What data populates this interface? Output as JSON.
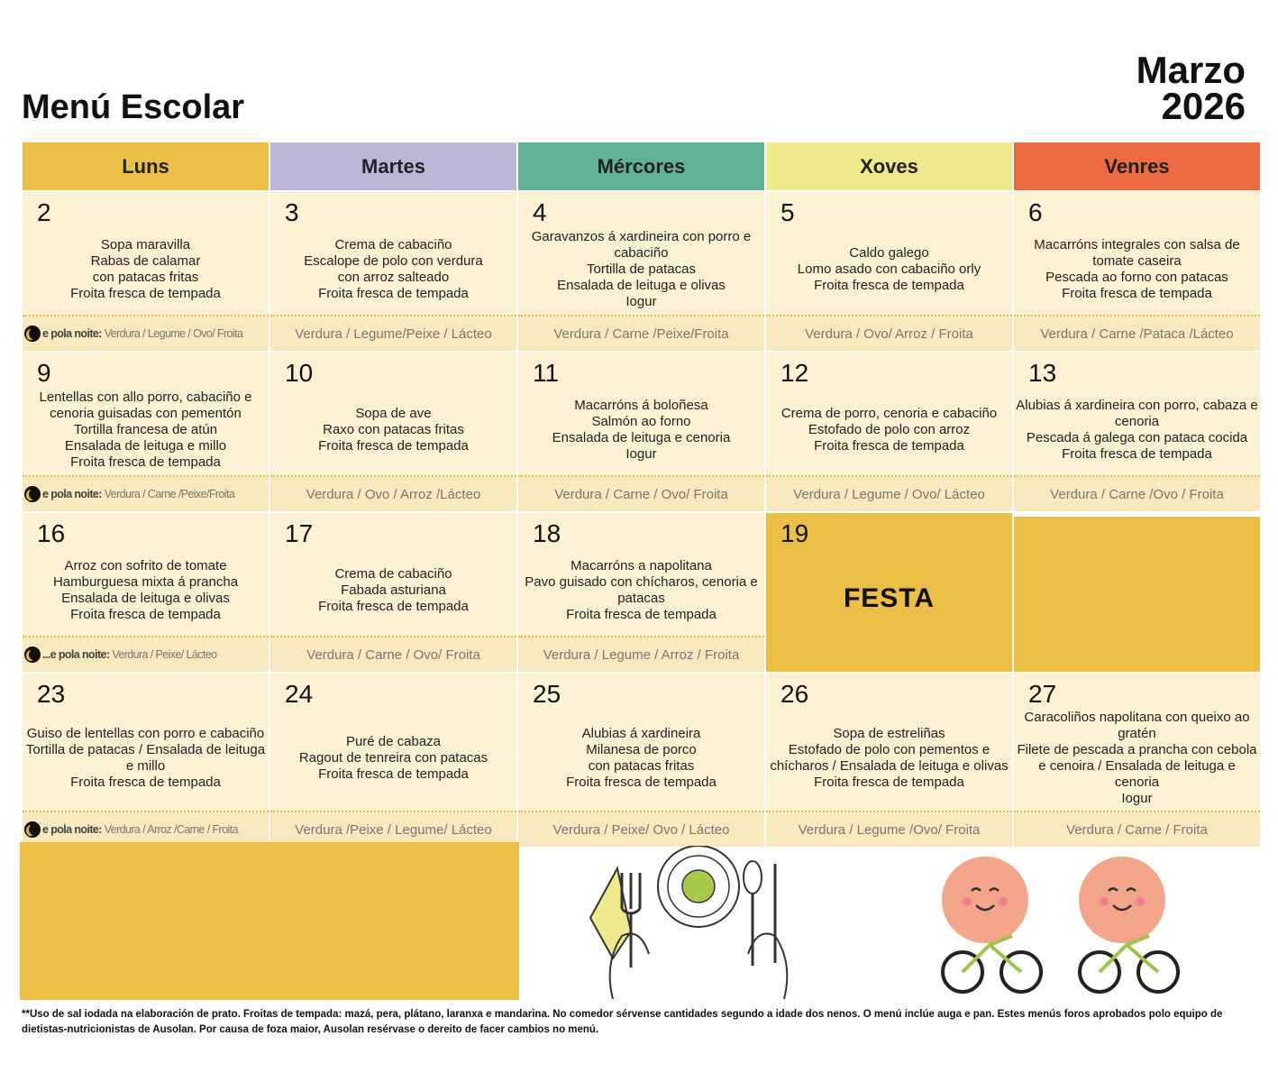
{
  "header": {
    "title": "Menú Escolar",
    "month": "Marzo",
    "year": "2026"
  },
  "days_of_week": [
    {
      "label": "Luns",
      "color": "#EBBF45"
    },
    {
      "label": "Martes",
      "color": "#BDB5DA"
    },
    {
      "label": "Mércores",
      "color": "#5FB298"
    },
    {
      "label": "Xoves",
      "color": "#EEE98A"
    },
    {
      "label": "Venres",
      "color": "#EC6B40"
    }
  ],
  "night_prefix": "e pola noite:",
  "night_prefix_short": "...e pola noite:",
  "weeks": [
    [
      {
        "num": "2",
        "dishes": [
          "Sopa maravilla",
          "Rabas de calamar",
          "con patacas fritas",
          "Froita fresca de tempada"
        ],
        "night": "Verdura / Legume / Ovo/ Froita"
      },
      {
        "num": "3",
        "dishes": [
          "Crema de cabaciño",
          "Escalope de polo con verdura",
          "con arroz salteado",
          "Froita fresca de tempada"
        ],
        "night": "Verdura / Legume/Peixe / Lácteo"
      },
      {
        "num": "4",
        "dishes": [
          "Garavanzos á xardineira con porro e cabaciño",
          "Tortilla de patacas",
          "Ensalada de leituga e olivas",
          "Iogur"
        ],
        "night": "Verdura / Carne /Peixe/Froita"
      },
      {
        "num": "5",
        "dishes": [
          "Caldo galego",
          "Lomo asado con cabaciño orly",
          "Froita fresca de tempada"
        ],
        "night": "Verdura / Ovo/ Arroz / Froita"
      },
      {
        "num": "6",
        "dishes": [
          "Macarróns integrales con salsa de tomate caseira",
          "Pescada ao forno con patacas",
          "Froita fresca de tempada"
        ],
        "night": "Verdura / Carne /Pataca /Lácteo"
      }
    ],
    [
      {
        "num": "9",
        "dishes": [
          "Lentellas con allo porro, cabaciño e cenoria guisadas con pementón",
          "Tortilla francesa de atún",
          "Ensalada de leituga e millo",
          "Froita fresca de tempada"
        ],
        "night": "Verdura / Carne /Peixe/Froita"
      },
      {
        "num": "10",
        "dishes": [
          "Sopa de ave",
          "Raxo con patacas fritas",
          "Froita fresca de tempada"
        ],
        "night": "Verdura / Ovo / Arroz /Lácteo"
      },
      {
        "num": "11",
        "dishes": [
          "Macarróns á boloñesa",
          "Salmón ao forno",
          "Ensalada de leituga e cenoria",
          "Iogur"
        ],
        "night": "Verdura / Carne / Ovo/ Froita"
      },
      {
        "num": "12",
        "dishes": [
          "Crema de porro, cenoria e cabaciño",
          "Estofado de polo con arroz",
          "Froita fresca de tempada"
        ],
        "night": "Verdura / Legume / Ovo/ Lácteo"
      },
      {
        "num": "13",
        "dishes": [
          "Alubias á xardineira con porro, cabaza e cenoria",
          "Pescada á galega con pataca cocida",
          "Froita fresca de tempada"
        ],
        "night": "Verdura / Carne /Ovo / Froita"
      }
    ],
    [
      {
        "num": "16",
        "dishes": [
          "Arroz con sofrito de tomate",
          "Hamburguesa mixta á prancha",
          "Ensalada de leituga e olivas",
          "Froita fresca de tempada"
        ],
        "night": "Verdura / Peixe/ Lácteo"
      },
      {
        "num": "17",
        "dishes": [
          "Crema de cabaciño",
          "Fabada asturiana",
          "Froita fresca de tempada"
        ],
        "night": "Verdura / Carne / Ovo/ Froita"
      },
      {
        "num": "18",
        "dishes": [
          "Macarróns a napolitana",
          "Pavo guisado con chícharos, cenoria e patacas",
          "Froita fresca de tempada"
        ],
        "night": "Verdura / Legume / Arroz / Froita"
      },
      {
        "num": "19",
        "festa": "FESTA"
      },
      {
        "num": "",
        "blank": true
      }
    ],
    [
      {
        "num": "23",
        "dishes": [
          "Guiso de lentellas con porro e cabaciño",
          "Tortilla de patacas / Ensalada de leituga e millo",
          "Froita fresca de tempada"
        ],
        "night": "Verdura / Arroz /Carne / Froita"
      },
      {
        "num": "24",
        "dishes": [
          "Puré de cabaza",
          "Ragout de tenreira con patacas",
          "Froita fresca de tempada"
        ],
        "night": "Verdura /Peixe / Legume/ Lácteo"
      },
      {
        "num": "25",
        "dishes": [
          "Alubias á xardineira",
          "Milanesa de porco",
          "con patacas fritas",
          "Froita fresca de tempada"
        ],
        "night": "Verdura / Peixe/ Ovo / Lácteo"
      },
      {
        "num": "26",
        "dishes": [
          "Sopa de estreliñas",
          "Estofado de polo con pementos e chícharos / Ensalada de leituga e olivas",
          "Froita fresca de tempada"
        ],
        "night": "Verdura / Legume /Ovo/ Froita"
      },
      {
        "num": "27",
        "dishes": [
          "Caracoliños napolitana con queixo ao gratén",
          "Filete de pescada a prancha con cebola e cenoira / Ensalada de leituga e cenoria",
          "Iogur"
        ],
        "night": "Verdura / Carne / Froita"
      }
    ]
  ],
  "footer": "**Uso de sal iodada na elaboración de prato. Froitas de tempada: mazá, pera, plátano, laranxa e mandarina. No comedor sérvense cantidades segundo a idade dos nenos. O menú inclúe auga e pan. Estes menús foros aprobados polo equipo de dietistas-nutricionistas de Ausolan. Por causa de foza maior, Ausolan resérvase o dereito de facer cambios no menú."
}
